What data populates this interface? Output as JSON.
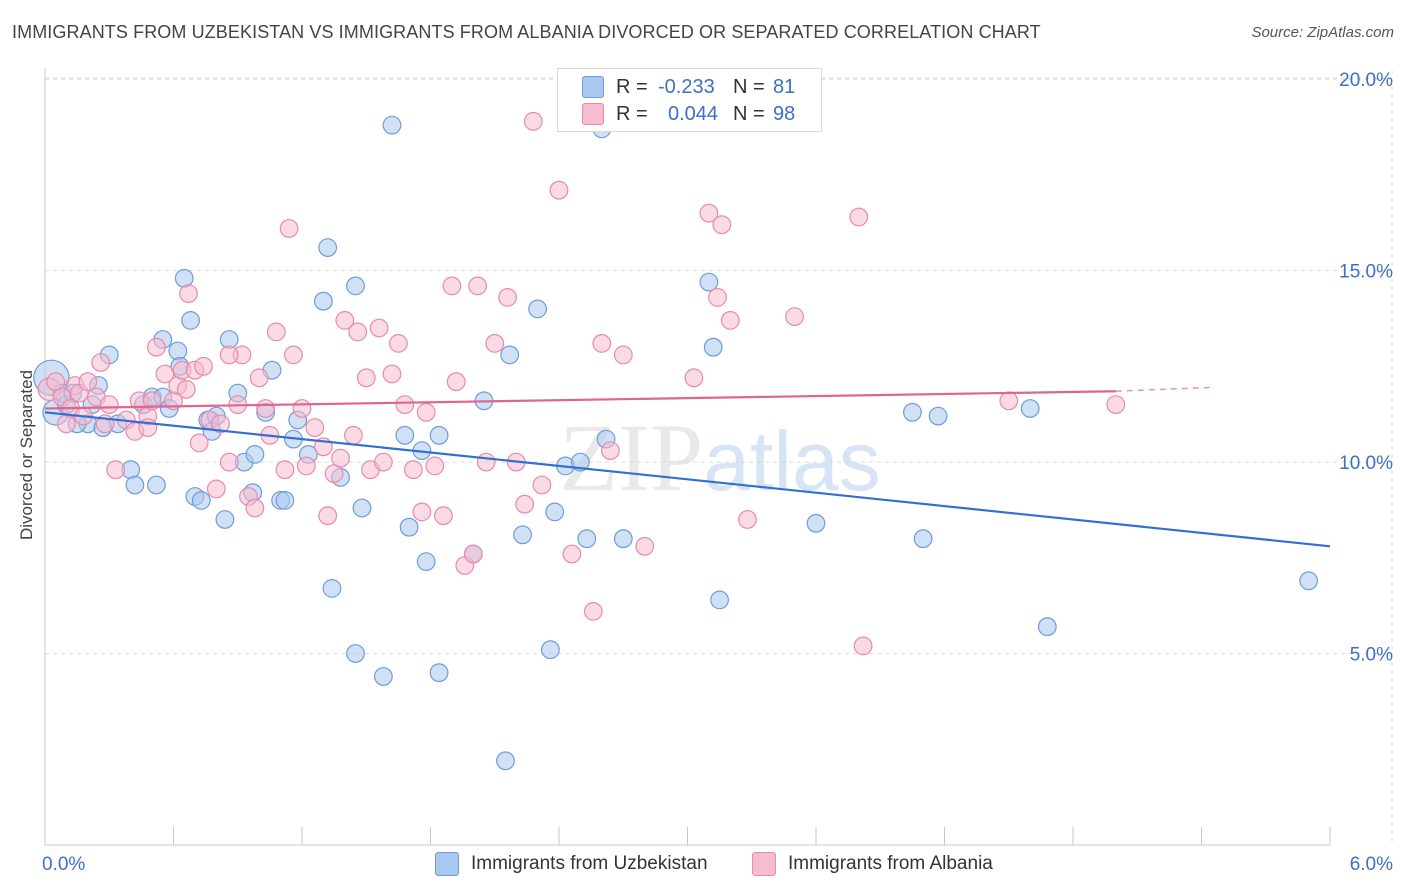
{
  "header": {
    "title": "IMMIGRANTS FROM UZBEKISTAN VS IMMIGRANTS FROM ALBANIA DIVORCED OR SEPARATED CORRELATION CHART",
    "source": "Source: ZipAtlas.com"
  },
  "legend": {
    "rows": [
      {
        "r_label": "R =",
        "r_value": "-0.233",
        "n_label": "N =",
        "n_value": "81"
      },
      {
        "r_label": "R =",
        "r_value": "0.044",
        "n_label": "N =",
        "n_value": "98"
      }
    ]
  },
  "bottom_legend": {
    "items": [
      {
        "label": "Immigrants from Uzbekistan"
      },
      {
        "label": "Immigrants from Albania"
      }
    ]
  },
  "colors": {
    "uzbekistan_fill": "#a9c8ef",
    "uzbekistan_stroke": "#6e9cdc",
    "uzbekistan_line": "#2f6fd6",
    "albania_fill": "#f6bcd0",
    "albania_stroke": "#e98aaa",
    "albania_line": "#e06490",
    "axis_text": "#3d6fc4",
    "grid": "#dcdcdc"
  },
  "chart_data": {
    "type": "scatter",
    "title": "IMMIGRANTS FROM UZBEKISTAN VS IMMIGRANTS FROM ALBANIA DIVORCED OR SEPARATED CORRELATION CHART",
    "xlabel": "",
    "ylabel": "Divorced or Separated",
    "xlim": [
      0,
      6
    ],
    "ylim": [
      0,
      20.5
    ],
    "x_tick_labels": [
      "0.0%",
      "6.0%"
    ],
    "y_ticks": [
      5,
      10,
      15,
      20
    ],
    "y_tick_labels": [
      "5.0%",
      "10.0%",
      "15.0%",
      "20.0%"
    ],
    "watermark": "ZIPatlas",
    "grid": true,
    "legend_position": "top-center",
    "series": [
      {
        "name": "Immigrants from Uzbekistan",
        "R": -0.233,
        "N": 81,
        "trend": {
          "x": [
            0.0,
            6.0
          ],
          "y": [
            11.3,
            7.8
          ],
          "dashed_from": null
        },
        "points": [
          [
            0.03,
            12.2,
            22
          ],
          [
            0.05,
            11.3,
            16
          ],
          [
            0.08,
            11.8,
            11
          ],
          [
            0.1,
            11.5,
            11
          ],
          [
            0.13,
            11.8,
            11
          ],
          [
            0.2,
            11.0,
            11
          ],
          [
            0.22,
            11.5,
            11
          ],
          [
            0.25,
            12.0,
            11
          ],
          [
            0.3,
            12.8,
            11
          ],
          [
            0.34,
            11.0,
            11
          ],
          [
            0.4,
            9.8,
            11
          ],
          [
            0.42,
            9.4,
            11
          ],
          [
            0.46,
            11.5,
            11
          ],
          [
            0.5,
            11.7,
            11
          ],
          [
            0.55,
            13.2,
            11
          ],
          [
            0.52,
            9.4,
            11
          ],
          [
            0.55,
            11.7,
            11
          ],
          [
            0.58,
            11.4,
            11
          ],
          [
            0.62,
            12.9,
            11
          ],
          [
            0.63,
            12.5,
            11
          ],
          [
            0.65,
            14.8,
            11
          ],
          [
            0.68,
            13.7,
            11
          ],
          [
            0.7,
            9.1,
            11
          ],
          [
            0.73,
            9.0,
            11
          ],
          [
            0.76,
            11.1,
            11
          ],
          [
            0.78,
            10.8,
            11
          ],
          [
            0.8,
            11.2,
            11
          ],
          [
            0.84,
            8.5,
            11
          ],
          [
            0.86,
            13.2,
            11
          ],
          [
            0.9,
            11.8,
            11
          ],
          [
            0.93,
            10.0,
            11
          ],
          [
            0.98,
            10.2,
            11
          ],
          [
            0.97,
            9.2,
            11
          ],
          [
            1.03,
            11.3,
            11
          ],
          [
            1.06,
            12.4,
            11
          ],
          [
            1.1,
            9.0,
            11
          ],
          [
            1.12,
            9.0,
            11
          ],
          [
            1.16,
            10.6,
            11
          ],
          [
            1.18,
            11.1,
            11
          ],
          [
            1.23,
            10.2,
            11
          ],
          [
            1.3,
            14.2,
            11
          ],
          [
            1.32,
            15.6,
            11
          ],
          [
            1.34,
            6.7,
            11
          ],
          [
            1.38,
            9.6,
            11
          ],
          [
            1.45,
            14.6,
            11
          ],
          [
            1.45,
            5.0,
            11
          ],
          [
            1.48,
            8.8,
            11
          ],
          [
            1.58,
            4.4,
            11
          ],
          [
            1.62,
            18.8,
            11
          ],
          [
            1.68,
            10.7,
            11
          ],
          [
            1.7,
            8.3,
            11
          ],
          [
            1.76,
            10.3,
            11
          ],
          [
            1.78,
            7.4,
            11
          ],
          [
            1.84,
            10.7,
            11
          ],
          [
            1.84,
            4.5,
            11
          ],
          [
            2.05,
            11.6,
            11
          ],
          [
            2.15,
            2.2,
            11
          ],
          [
            2.17,
            12.8,
            11
          ],
          [
            2.23,
            8.1,
            11
          ],
          [
            2.3,
            14.0,
            11
          ],
          [
            2.36,
            5.1,
            11
          ],
          [
            2.38,
            8.7,
            11
          ],
          [
            2.43,
            9.9,
            11
          ],
          [
            2.5,
            10.0,
            11
          ],
          [
            2.53,
            8.0,
            11
          ],
          [
            2.6,
            18.7,
            11
          ],
          [
            2.62,
            10.6,
            11
          ],
          [
            2.7,
            8.0,
            11
          ],
          [
            3.1,
            14.7,
            11
          ],
          [
            3.12,
            13.0,
            11
          ],
          [
            3.15,
            6.4,
            11
          ],
          [
            3.6,
            8.4,
            11
          ],
          [
            4.05,
            11.3,
            11
          ],
          [
            4.1,
            8.0,
            11
          ],
          [
            4.17,
            11.2,
            11
          ],
          [
            4.6,
            11.4,
            11
          ],
          [
            4.68,
            5.7,
            11
          ],
          [
            5.9,
            6.9,
            11
          ],
          [
            0.15,
            11.0,
            11
          ],
          [
            0.27,
            10.9,
            11
          ],
          [
            2.0,
            7.6,
            11
          ]
        ]
      },
      {
        "name": "Immigrants from Albania",
        "R": 0.044,
        "N": 98,
        "trend": {
          "x": [
            0.0,
            5.0,
            5.45
          ],
          "y": [
            11.4,
            11.85,
            11.95
          ],
          "dashed_from": 5.0
        },
        "points": [
          [
            0.02,
            11.9,
            14
          ],
          [
            0.05,
            12.1,
            11
          ],
          [
            0.08,
            11.7,
            11
          ],
          [
            0.1,
            11.0,
            11
          ],
          [
            0.12,
            11.4,
            11
          ],
          [
            0.14,
            12.0,
            11
          ],
          [
            0.16,
            11.8,
            11
          ],
          [
            0.18,
            11.2,
            11
          ],
          [
            0.2,
            12.1,
            11
          ],
          [
            0.24,
            11.7,
            11
          ],
          [
            0.26,
            12.6,
            11
          ],
          [
            0.28,
            11.0,
            11
          ],
          [
            0.3,
            11.5,
            11
          ],
          [
            0.33,
            9.8,
            11
          ],
          [
            0.38,
            11.1,
            11
          ],
          [
            0.42,
            10.8,
            11
          ],
          [
            0.44,
            11.6,
            11
          ],
          [
            0.48,
            11.2,
            11
          ],
          [
            0.5,
            11.6,
            11
          ],
          [
            0.52,
            13.0,
            11
          ],
          [
            0.56,
            12.3,
            11
          ],
          [
            0.6,
            11.6,
            11
          ],
          [
            0.62,
            12.0,
            11
          ],
          [
            0.64,
            12.4,
            11
          ],
          [
            0.67,
            14.4,
            11
          ],
          [
            0.7,
            12.4,
            11
          ],
          [
            0.72,
            10.5,
            11
          ],
          [
            0.74,
            12.5,
            11
          ],
          [
            0.77,
            11.1,
            11
          ],
          [
            0.8,
            9.3,
            11
          ],
          [
            0.82,
            11.0,
            11
          ],
          [
            0.86,
            10.0,
            11
          ],
          [
            0.9,
            11.5,
            11
          ],
          [
            0.92,
            12.8,
            11
          ],
          [
            0.95,
            9.1,
            11
          ],
          [
            0.98,
            8.8,
            11
          ],
          [
            1.0,
            12.2,
            11
          ],
          [
            1.03,
            11.4,
            11
          ],
          [
            1.05,
            10.7,
            11
          ],
          [
            1.08,
            13.4,
            11
          ],
          [
            1.12,
            9.8,
            11
          ],
          [
            1.14,
            16.1,
            11
          ],
          [
            1.16,
            12.8,
            11
          ],
          [
            1.2,
            11.4,
            11
          ],
          [
            1.22,
            9.9,
            11
          ],
          [
            1.26,
            10.9,
            11
          ],
          [
            1.3,
            10.4,
            11
          ],
          [
            1.32,
            8.6,
            11
          ],
          [
            1.35,
            9.7,
            11
          ],
          [
            1.38,
            10.1,
            11
          ],
          [
            1.4,
            13.7,
            11
          ],
          [
            1.44,
            10.7,
            11
          ],
          [
            1.46,
            13.4,
            11
          ],
          [
            1.5,
            12.2,
            11
          ],
          [
            1.52,
            9.8,
            11
          ],
          [
            1.56,
            13.5,
            11
          ],
          [
            1.58,
            10.0,
            11
          ],
          [
            1.62,
            12.3,
            11
          ],
          [
            1.65,
            13.1,
            11
          ],
          [
            1.68,
            11.5,
            11
          ],
          [
            1.72,
            9.8,
            11
          ],
          [
            1.76,
            8.7,
            11
          ],
          [
            1.78,
            11.3,
            11
          ],
          [
            1.82,
            9.9,
            11
          ],
          [
            1.86,
            8.6,
            11
          ],
          [
            1.9,
            14.6,
            11
          ],
          [
            1.92,
            12.1,
            11
          ],
          [
            1.96,
            7.3,
            11
          ],
          [
            2.0,
            7.6,
            11
          ],
          [
            2.02,
            14.6,
            11
          ],
          [
            2.06,
            10.0,
            11
          ],
          [
            2.1,
            13.1,
            11
          ],
          [
            2.16,
            14.3,
            11
          ],
          [
            2.2,
            10.0,
            11
          ],
          [
            2.24,
            8.9,
            11
          ],
          [
            2.28,
            18.9,
            11
          ],
          [
            2.32,
            9.4,
            11
          ],
          [
            2.4,
            17.1,
            11
          ],
          [
            2.46,
            7.6,
            11
          ],
          [
            2.56,
            6.1,
            11
          ],
          [
            2.6,
            13.1,
            11
          ],
          [
            2.64,
            10.3,
            11
          ],
          [
            2.7,
            12.8,
            11
          ],
          [
            2.8,
            7.8,
            11
          ],
          [
            3.03,
            12.2,
            11
          ],
          [
            3.1,
            16.5,
            11
          ],
          [
            3.14,
            14.3,
            11
          ],
          [
            3.16,
            16.2,
            11
          ],
          [
            3.2,
            13.7,
            11
          ],
          [
            3.28,
            8.5,
            11
          ],
          [
            3.5,
            13.8,
            11
          ],
          [
            3.8,
            16.4,
            11
          ],
          [
            3.82,
            5.2,
            11
          ],
          [
            4.5,
            11.6,
            11
          ],
          [
            5.0,
            11.5,
            11
          ],
          [
            0.48,
            10.9,
            11
          ],
          [
            0.86,
            12.8,
            11
          ],
          [
            0.66,
            11.9,
            11
          ]
        ]
      }
    ]
  }
}
